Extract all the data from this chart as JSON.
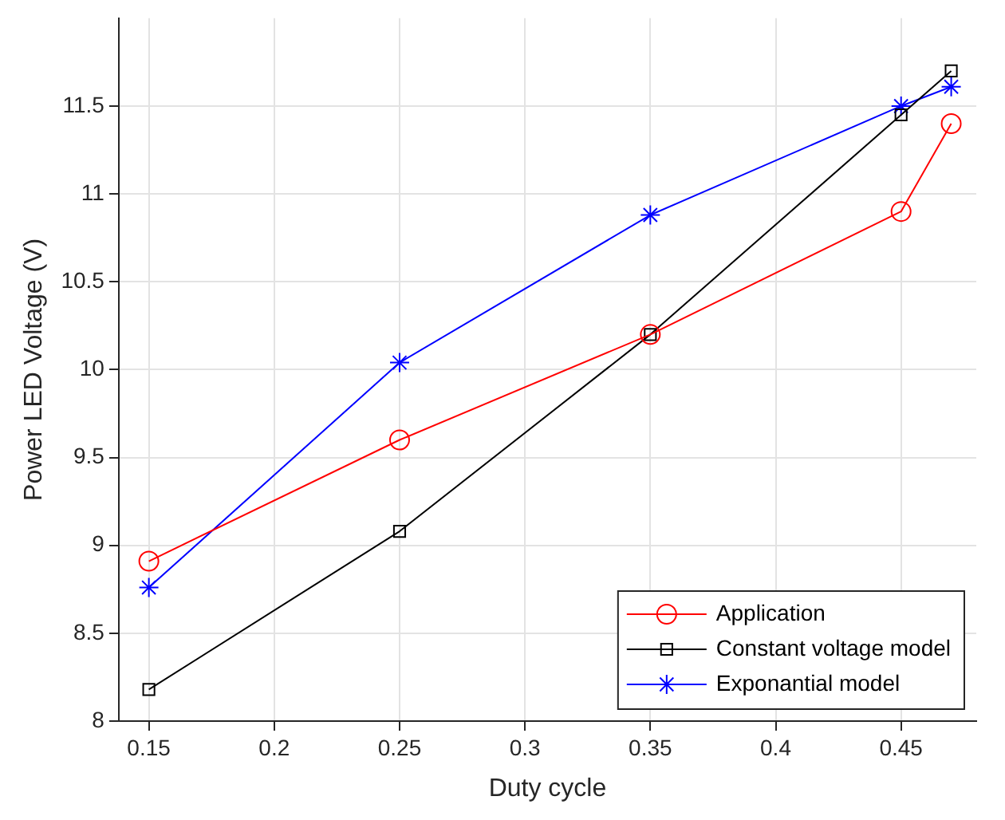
{
  "chart_data": {
    "type": "line",
    "xlabel": "Duty cycle",
    "ylabel": "Power LED Voltage (V)",
    "x": [
      0.15,
      0.25,
      0.35,
      0.45,
      0.47
    ],
    "series": [
      {
        "name": "Application",
        "color": "#ff0000",
        "marker": "circle",
        "values": [
          8.91,
          9.6,
          10.2,
          10.9,
          11.4
        ]
      },
      {
        "name": "Constant voltage model",
        "color": "#000000",
        "marker": "square",
        "values": [
          8.18,
          9.08,
          10.2,
          11.45,
          11.7
        ]
      },
      {
        "name": "Exponantial model",
        "color": "#0000ff",
        "marker": "cross",
        "values": [
          8.76,
          10.04,
          10.88,
          11.5,
          11.61
        ]
      }
    ],
    "xlim": [
      0.138,
      0.48
    ],
    "xticks": [
      0.15,
      0.2,
      0.25,
      0.3,
      0.35,
      0.4,
      0.45
    ],
    "ylim": [
      8,
      12
    ],
    "yticks": [
      8,
      8.5,
      9,
      9.5,
      10,
      10.5,
      11,
      11.5
    ],
    "grid": true,
    "legend": "bottom right",
    "line_style": "solid"
  }
}
